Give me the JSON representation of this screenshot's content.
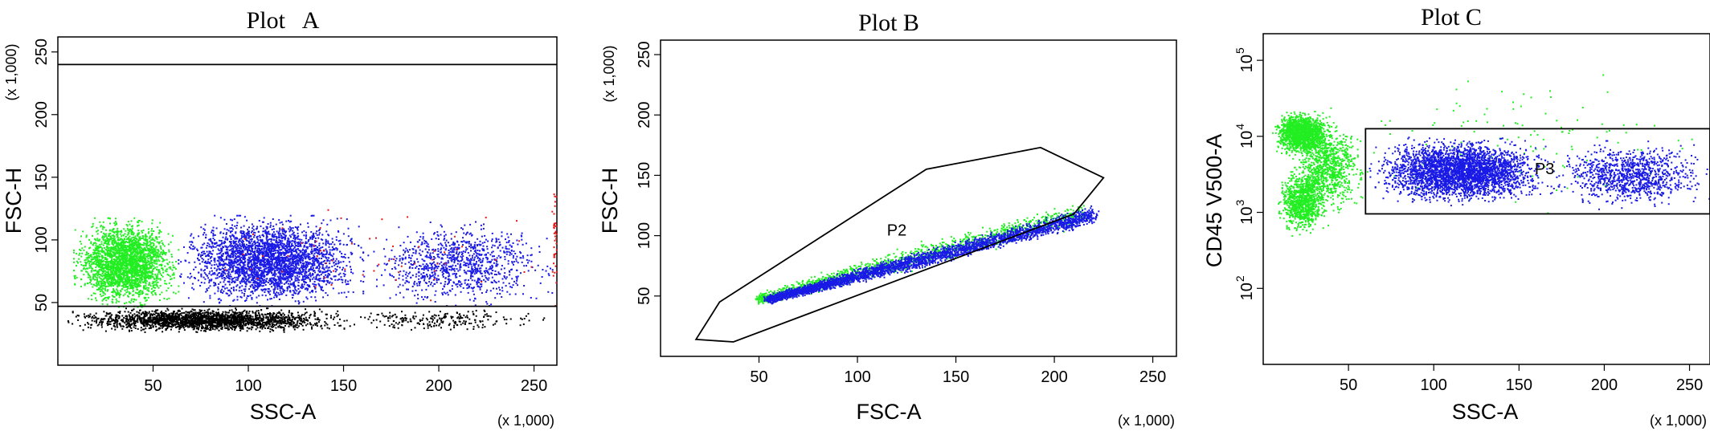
{
  "chart_data": [
    {
      "type": "scatter",
      "title": "Plot   A",
      "xlabel": "SSC-A",
      "ylabel": "FSC-H",
      "x_unit": "(x 1,000)",
      "y_unit": "(x 1,000)",
      "xlim": [
        0,
        262
      ],
      "ylim": [
        0,
        262
      ],
      "x_ticks": [
        "50",
        "100",
        "150",
        "200",
        "250"
      ],
      "y_ticks": [
        "50",
        "100",
        "150",
        "200",
        "250"
      ],
      "colors": {
        "black": "#000000",
        "green": "#22ee22",
        "blue": "#1a1ae6",
        "red": "#e61a1a"
      },
      "series": [
        {
          "color": "black",
          "clusters": [
            {
              "x": [
                5,
                150
              ],
              "y": [
                27,
                46
              ],
              "n": 2200
            },
            {
              "x": [
                150,
                255
              ],
              "y": [
                27,
                46
              ],
              "n": 220
            }
          ]
        },
        {
          "color": "green",
          "clusters": [
            {
              "x": [
                8,
                63
              ],
              "y": [
                47,
                118
              ],
              "n": 2600
            }
          ]
        },
        {
          "color": "blue",
          "clusters": [
            {
              "x": [
                63,
                160
              ],
              "y": [
                48,
                120
              ],
              "n": 3000
            },
            {
              "x": [
                160,
                262
              ],
              "y": [
                48,
                115
              ],
              "n": 1000
            }
          ]
        },
        {
          "color": "red",
          "clusters": [
            {
              "x": [
                60,
                260
              ],
              "y": [
                50,
                130
              ],
              "n": 60
            },
            {
              "x": [
                259,
                262
              ],
              "y": [
                48,
                150
              ],
              "n": 40
            }
          ]
        }
      ],
      "gate_lines_y": [
        47,
        240
      ]
    },
    {
      "type": "scatter",
      "title": "Plot B",
      "xlabel": "FSC-A",
      "ylabel": "FSC-H",
      "x_unit": "(x 1,000)",
      "y_unit": "(x 1,000)",
      "xlim": [
        0,
        262
      ],
      "ylim": [
        0,
        262
      ],
      "x_ticks": [
        "50",
        "100",
        "150",
        "200",
        "250"
      ],
      "y_ticks": [
        "50",
        "100",
        "150",
        "200",
        "250"
      ],
      "colors": {
        "green": "#22ee22",
        "blue": "#1a1ae6"
      },
      "series": [
        {
          "color": "green",
          "band": {
            "x0": 50,
            "y0": 48,
            "x1": 215,
            "y1": 120,
            "width": 12
          },
          "n": 1400
        },
        {
          "color": "blue",
          "band": {
            "x0": 55,
            "y0": 48,
            "x1": 220,
            "y1": 118,
            "width": 9
          },
          "n": 3200
        }
      ],
      "gate": {
        "label": "P2",
        "label_pos": [
          120,
          100
        ],
        "polygon": [
          [
            18,
            14
          ],
          [
            37,
            12
          ],
          [
            210,
            118
          ],
          [
            225,
            148
          ],
          [
            193,
            173
          ],
          [
            135,
            155
          ],
          [
            30,
            45
          ]
        ]
      }
    },
    {
      "type": "scatter",
      "title": "Plot C",
      "xlabel": "SSC-A",
      "ylabel": "CD45 V500-A",
      "x_unit": "(x 1,000)",
      "x_ticks": [
        "50",
        "100",
        "150",
        "200",
        "250"
      ],
      "y_ticks": [
        {
          "base": "10",
          "exp": "2"
        },
        {
          "base": "10",
          "exp": "3"
        },
        {
          "base": "10",
          "exp": "4"
        },
        {
          "base": "10",
          "exp": "5"
        }
      ],
      "xlim": [
        0,
        262
      ],
      "ylim_log10": [
        1.0,
        5.35
      ],
      "colors": {
        "green": "#22ee22",
        "blue": "#1a1ae6"
      },
      "series": [
        {
          "color": "green",
          "clusters": [
            {
              "x": [
                5,
                40
              ],
              "ylog": [
                3.75,
                4.35
              ],
              "n": 1500
            },
            {
              "x": [
                8,
                38
              ],
              "ylog": [
                2.7,
                3.6
              ],
              "n": 900
            },
            {
              "x": [
                15,
                60
              ],
              "ylog": [
                3.0,
                4.2
              ],
              "n": 900
            },
            {
              "x": [
                20,
                262
              ],
              "ylog": [
                3.0,
                4.9
              ],
              "n": 120
            }
          ]
        },
        {
          "color": "blue",
          "clusters": [
            {
              "x": [
                62,
                170
              ],
              "ylog": [
                3.1,
                4.0
              ],
              "n": 3200
            },
            {
              "x": [
                170,
                262
              ],
              "ylog": [
                3.05,
                3.95
              ],
              "n": 1000
            }
          ]
        }
      ],
      "gate": {
        "label": "P3",
        "x": [
          60,
          262
        ],
        "ylog": [
          2.98,
          4.1
        ],
        "label_pos": [
          165,
          3.5
        ]
      }
    }
  ]
}
